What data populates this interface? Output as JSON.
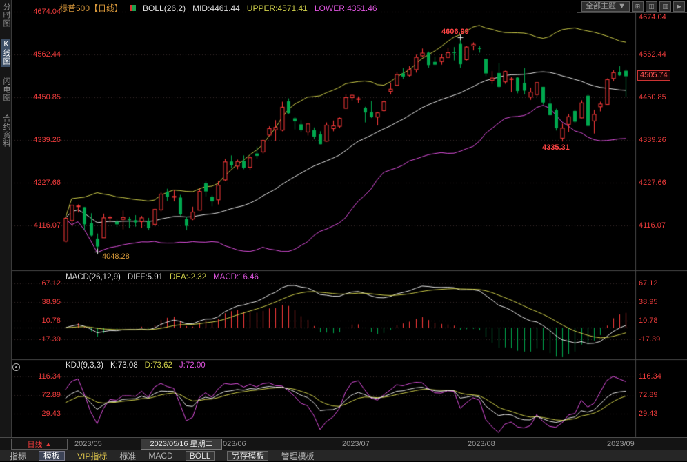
{
  "header": {
    "title": "标普500【日线】",
    "indicator_label": "BOLL(26,2)",
    "mid": "MID:4461.44",
    "upper": "UPPER:4571.41",
    "lower": "LOWER:4351.46",
    "theme_selector": "全部主题 ▼",
    "layout_buttons": [
      "⊞",
      "◫",
      "▥",
      "▶"
    ]
  },
  "sidebar": {
    "items": [
      {
        "label": "分时图"
      },
      {
        "label": "K线图"
      },
      {
        "label": "闪电图"
      },
      {
        "label": "合约资料"
      }
    ]
  },
  "price_axis": {
    "left_labels": [
      "4674.04",
      "4562.44",
      "4450.85",
      "4339.26",
      "4227.66",
      "4116.07"
    ],
    "right_labels": [
      "4674.04",
      "4562.44",
      "4450.85",
      "4339.26",
      "4227.66",
      "4116.07"
    ],
    "last_price": "4505.74"
  },
  "annotations": {
    "high": "4606.99",
    "low_aug": "4335.31",
    "low_may": "4048.28"
  },
  "macd_panel": {
    "title": "MACD(26,12,9)",
    "diff": "DIFF:5.91",
    "dea": "DEA:-2.32",
    "macd": "MACD:16.46",
    "axis_labels": [
      "67.12",
      "38.95",
      "10.78",
      "-17.39"
    ]
  },
  "kdj_panel": {
    "title": "KDJ(9,3,3)",
    "k": "K:73.08",
    "d": "D:73.62",
    "j": "J:72.00",
    "axis_labels": [
      "116.34",
      "72.89",
      "29.43"
    ]
  },
  "timeline": {
    "period": "日线",
    "period_arrow": "▲",
    "labels": [
      "2023/05",
      "023/06",
      "2023/07",
      "2023/08",
      "2023/09"
    ],
    "selected_date": "2023/05/16 星期二"
  },
  "toolbar": {
    "items": [
      "指标",
      "模板",
      "VIP指标",
      "标准",
      "MACD",
      "BOLL",
      "另存模板",
      "管理模板"
    ]
  },
  "chart_data": {
    "type": "candlestick",
    "symbol": "标普500",
    "interval": "日线",
    "price_ticks": [
      4674.04,
      4562.44,
      4450.85,
      4339.26,
      4227.66,
      4116.07
    ],
    "macd_ticks": [
      67.12,
      38.95,
      10.78,
      -17.39
    ],
    "kdj_ticks": [
      116.34,
      72.89,
      29.43
    ],
    "boll": {
      "n": 26,
      "k": 2,
      "mid": 4461.44,
      "upper": 4571.41,
      "lower": 4351.46
    },
    "macd": {
      "fast": 12,
      "slow": 26,
      "signal": 9,
      "diff": 5.91,
      "dea": -2.32,
      "macd": 16.46
    },
    "kdj": {
      "n": 9,
      "k": 73.08,
      "d": 73.62,
      "j": 72.0
    },
    "marks": {
      "high": {
        "index": 62,
        "price": 4606.99
      },
      "low_aug": {
        "index": 78,
        "price": 4335.31
      },
      "low_may": {
        "index": 5,
        "price": 4048.28
      },
      "last_close": 4505.74
    },
    "colors": {
      "up": "#ff3b3b",
      "down": "#00a84e",
      "boll_mid": "#e8e8e8",
      "boll_upper": "#cfcf4a",
      "boll_lower": "#e050e0",
      "diff_line": "#e8e8e8",
      "dea_line": "#cfcf4a",
      "k_line": "#e8e8e8",
      "d_line": "#cfcf4a",
      "j_line": "#e050e0",
      "grid": "#3a2c2c",
      "separator": "#4a4a4a"
    },
    "candles": [
      [
        4075,
        4138,
        4070,
        4135
      ],
      [
        4129,
        4170,
        4114,
        4169
      ],
      [
        4166,
        4171,
        4150,
        4167
      ],
      [
        4164,
        4164,
        4104,
        4119
      ],
      [
        4122,
        4148,
        4088,
        4090
      ],
      [
        4082,
        4095,
        4048.28,
        4061
      ],
      [
        4084,
        4147,
        4084,
        4136
      ],
      [
        4136,
        4142,
        4124,
        4138
      ],
      [
        4126,
        4131,
        4112,
        4119
      ],
      [
        4132,
        4155,
        4106,
        4137
      ],
      [
        4133,
        4139,
        4109,
        4130
      ],
      [
        4130,
        4143,
        4113,
        4124
      ],
      [
        4126,
        4141,
        4110,
        4136
      ],
      [
        4128,
        4136,
        4104,
        4109
      ],
      [
        4119,
        4160,
        4114,
        4158
      ],
      [
        4157,
        4204,
        4153,
        4198
      ],
      [
        4204,
        4212,
        4180,
        4191
      ],
      [
        4190,
        4209,
        4179,
        4192
      ],
      [
        4189,
        4196,
        4142,
        4145
      ],
      [
        4133,
        4139,
        4104,
        4115
      ],
      [
        4133,
        4165,
        4130,
        4151
      ],
      [
        4156,
        4212,
        4156,
        4205
      ],
      [
        4226,
        4231,
        4192,
        4205
      ],
      [
        4191,
        4195,
        4166,
        4179
      ],
      [
        4183,
        4232,
        4171,
        4221
      ],
      [
        4235,
        4290,
        4232,
        4282
      ],
      [
        4283,
        4299,
        4266,
        4273
      ],
      [
        4271,
        4288,
        4263,
        4283
      ],
      [
        4285,
        4299,
        4263,
        4267
      ],
      [
        4268,
        4298,
        4261,
        4293
      ],
      [
        4304,
        4322,
        4291,
        4298
      ],
      [
        4308,
        4340,
        4304,
        4338
      ],
      [
        4352,
        4375,
        4349,
        4369
      ],
      [
        4366,
        4391,
        4337,
        4372
      ],
      [
        4365,
        4439,
        4362,
        4425
      ],
      [
        4440,
        4448,
        4407,
        4409
      ],
      [
        4396,
        4400,
        4367,
        4388
      ],
      [
        4380,
        4391,
        4360,
        4365
      ],
      [
        4360,
        4382,
        4351,
        4381
      ],
      [
        4365,
        4372,
        4341,
        4348
      ],
      [
        4354,
        4362,
        4328,
        4328
      ],
      [
        4336,
        4385,
        4335,
        4378
      ],
      [
        4369,
        4390,
        4362,
        4376
      ],
      [
        4375,
        4398,
        4370,
        4396
      ],
      [
        4422,
        4458,
        4422,
        4450
      ],
      [
        4450,
        4459,
        4442,
        4456
      ],
      [
        4446,
        4453,
        4436,
        4447
      ],
      [
        4423,
        4426,
        4385,
        4411
      ],
      [
        4412,
        4441,
        4397,
        4399
      ],
      [
        4399,
        4412,
        4377,
        4410
      ],
      [
        4416,
        4443,
        4413,
        4439
      ],
      [
        4466,
        4489,
        4458,
        4472
      ],
      [
        4482,
        4517,
        4480,
        4510
      ],
      [
        4513,
        4527,
        4499,
        4505
      ],
      [
        4508,
        4532,
        4505,
        4523
      ],
      [
        4523,
        4562,
        4515,
        4555
      ],
      [
        4559,
        4578,
        4557,
        4566
      ],
      [
        4567,
        4570,
        4528,
        4535
      ],
      [
        4543,
        4557,
        4535,
        4536
      ],
      [
        4544,
        4563,
        4536,
        4554
      ],
      [
        4555,
        4580,
        4553,
        4567
      ],
      [
        4568,
        4582,
        4547,
        4567
      ],
      [
        4590,
        4606.99,
        4528,
        4537
      ],
      [
        4549,
        4584,
        4547,
        4582
      ],
      [
        4585,
        4594,
        4573,
        4589
      ],
      [
        4579,
        4584,
        4567,
        4577
      ],
      [
        4551,
        4551,
        4506,
        4513
      ],
      [
        4495,
        4519,
        4486,
        4501
      ],
      [
        4514,
        4540,
        4474,
        4478
      ],
      [
        4491,
        4520,
        4486,
        4518
      ],
      [
        4498,
        4503,
        4464,
        4499
      ],
      [
        4502,
        4503,
        4461,
        4467
      ],
      [
        4488,
        4527,
        4458,
        4468
      ],
      [
        4451,
        4476,
        4444,
        4464
      ],
      [
        4458,
        4490,
        4453,
        4489
      ],
      [
        4478,
        4478,
        4432,
        4437
      ],
      [
        4434,
        4449,
        4403,
        4404
      ],
      [
        4417,
        4421,
        4364,
        4370
      ],
      [
        4344,
        4382,
        4335.31,
        4370
      ],
      [
        4380,
        4407,
        4360,
        4400
      ],
      [
        4415,
        4419,
        4383,
        4387
      ],
      [
        4397,
        4443,
        4396,
        4436
      ],
      [
        4455,
        4458,
        4375,
        4376
      ],
      [
        4389,
        4418,
        4356,
        4406
      ],
      [
        4426,
        4439,
        4414,
        4433
      ],
      [
        4432,
        4500,
        4431,
        4497
      ],
      [
        4500,
        4521,
        4493,
        4515
      ],
      [
        4517,
        4532,
        4507,
        4508
      ],
      [
        4520,
        4524,
        4452,
        4505.74
      ]
    ]
  }
}
